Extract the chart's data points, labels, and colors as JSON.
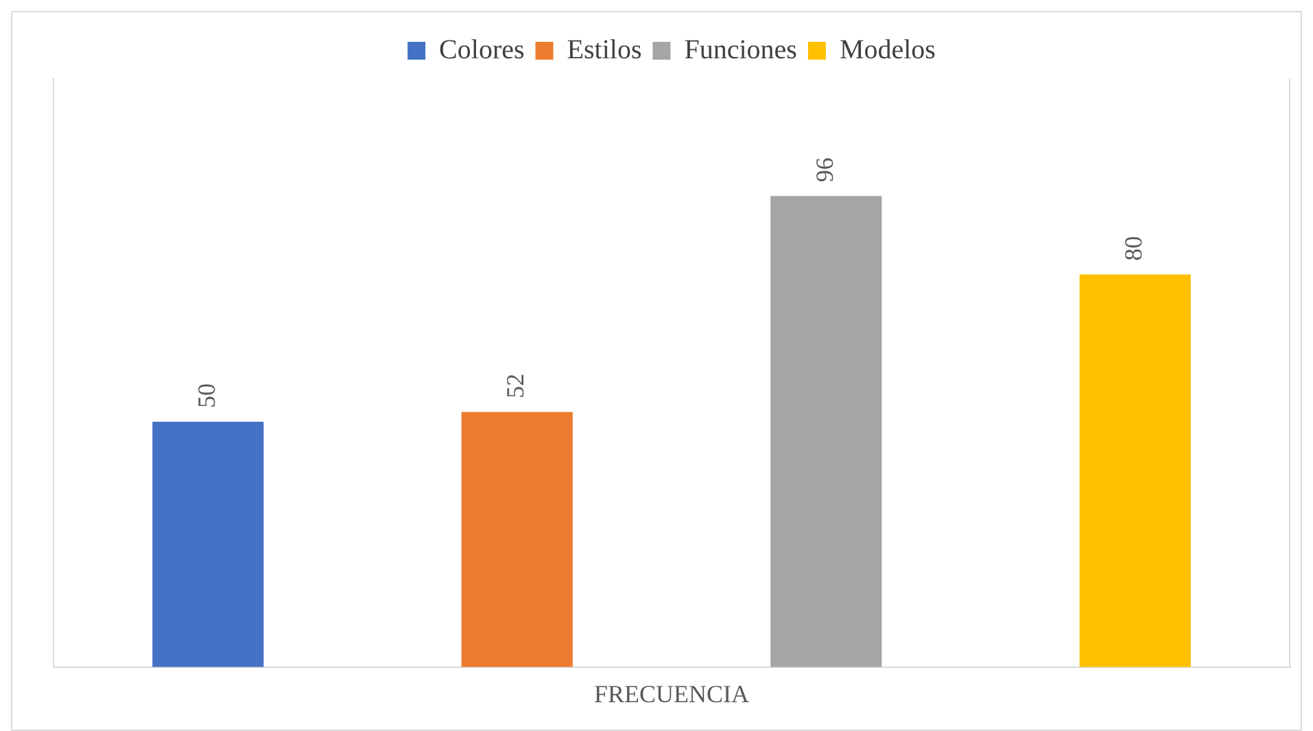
{
  "chart_data": {
    "type": "bar",
    "xlabel": "FRECUENCIA",
    "categories": [
      null,
      null,
      null,
      null
    ],
    "series": [
      {
        "name": "Colores",
        "color": "#4472c4",
        "values": [
          50,
          null,
          null,
          null
        ]
      },
      {
        "name": "Estilos",
        "color": "#ed7d31",
        "values": [
          null,
          52,
          null,
          null
        ]
      },
      {
        "name": "Funciones",
        "color": "#a5a5a5",
        "values": [
          null,
          null,
          96,
          null
        ]
      },
      {
        "name": "Modelos",
        "color": "#ffc000",
        "values": [
          null,
          null,
          null,
          80
        ]
      }
    ],
    "stacked": true,
    "ylim": [
      0,
      120
    ],
    "tick_labels": false,
    "grid": false,
    "legend": "top",
    "data_labels": true
  }
}
